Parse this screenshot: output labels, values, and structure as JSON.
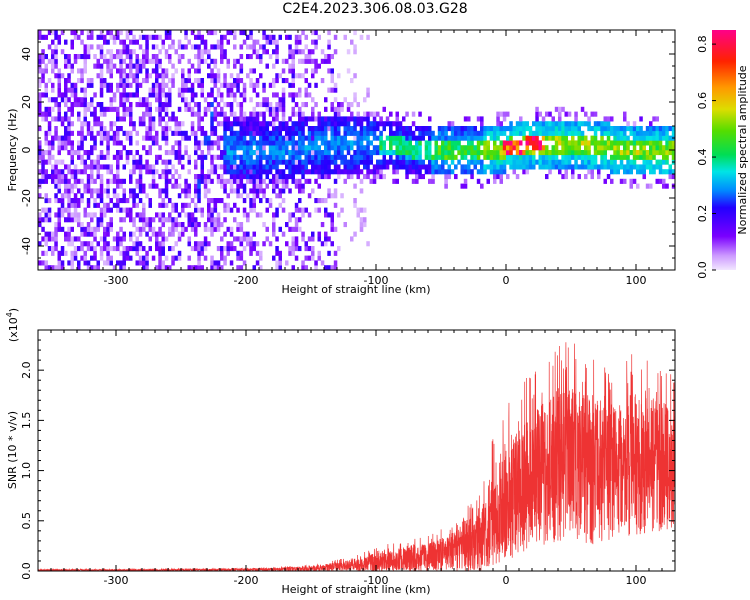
{
  "title": "C2E4.2023.306.08.03.G28",
  "chart_data": [
    {
      "type": "heatmap",
      "title": "C2E4.2023.306.08.03.G28",
      "xlabel": "Height of straight line (km)",
      "ylabel": "Frequency (Hz)",
      "xlim": [
        -360,
        130
      ],
      "ylim": [
        -50,
        50
      ],
      "xticks": [
        "-300",
        "-200",
        "-100",
        "0",
        "100"
      ],
      "yticks": [
        "-40",
        "-20",
        "0",
        "20",
        "40"
      ],
      "colorbar": {
        "label": "Normalized spectral amplitude",
        "range": [
          0.0,
          0.85
        ],
        "ticks": [
          "0.0",
          "0.2",
          "0.4",
          "0.6",
          "0.8"
        ],
        "colors": [
          "#f2e6ff",
          "#cc99ff",
          "#7a00ff",
          "#2200ff",
          "#0088ff",
          "#00e5e5",
          "#00dd55",
          "#55dd00",
          "#dddd00",
          "#ff9900",
          "#ff2200",
          "#ff0088"
        ]
      },
      "features": {
        "noise_region_x": [
          -360,
          -130
        ],
        "signal_band_center_hz": 0,
        "signal_band_halfwidth_hz": 10,
        "signal_band_x": [
          -220,
          130
        ],
        "peak_amplitude_x": 10
      }
    },
    {
      "type": "line",
      "xlabel": "Height of straight line (km)",
      "ylabel": "SNR (10 * v/v)",
      "scale_label": "(x10^4)",
      "xlim": [
        -360,
        130
      ],
      "ylim": [
        0,
        24000
      ],
      "xticks": [
        "-300",
        "-200",
        "-100",
        "0",
        "100"
      ],
      "yticks": [
        "0.0",
        "0.5",
        "1.0",
        "1.5",
        "2.0"
      ],
      "series": [
        {
          "color": "#ee3333",
          "envelope": {
            "x": [
              -360,
              -300,
              -200,
              -150,
              -120,
              -100,
              -80,
              -60,
              -40,
              -20,
              -10,
              0,
              20,
              40,
              60,
              80,
              100,
              120,
              130
            ],
            "lower": [
              0,
              0,
              0,
              0,
              0,
              0,
              0,
              0,
              0,
              0,
              500,
              1000,
              2000,
              3000,
              2500,
              3000,
              3500,
              4000,
              4000
            ],
            "upper": [
              200,
              200,
              300,
              600,
              1500,
              2500,
              3000,
              3500,
              5000,
              8000,
              14000,
              17000,
              20000,
              24000,
              22000,
              20000,
              22000,
              21000,
              19000
            ],
            "typical": [
              100,
              100,
              150,
              250,
              500,
              800,
              1100,
              1500,
              2200,
              3500,
              5000,
              7000,
              9000,
              11000,
              11500,
              10500,
              10500,
              11000,
              11000
            ]
          }
        }
      ]
    }
  ]
}
